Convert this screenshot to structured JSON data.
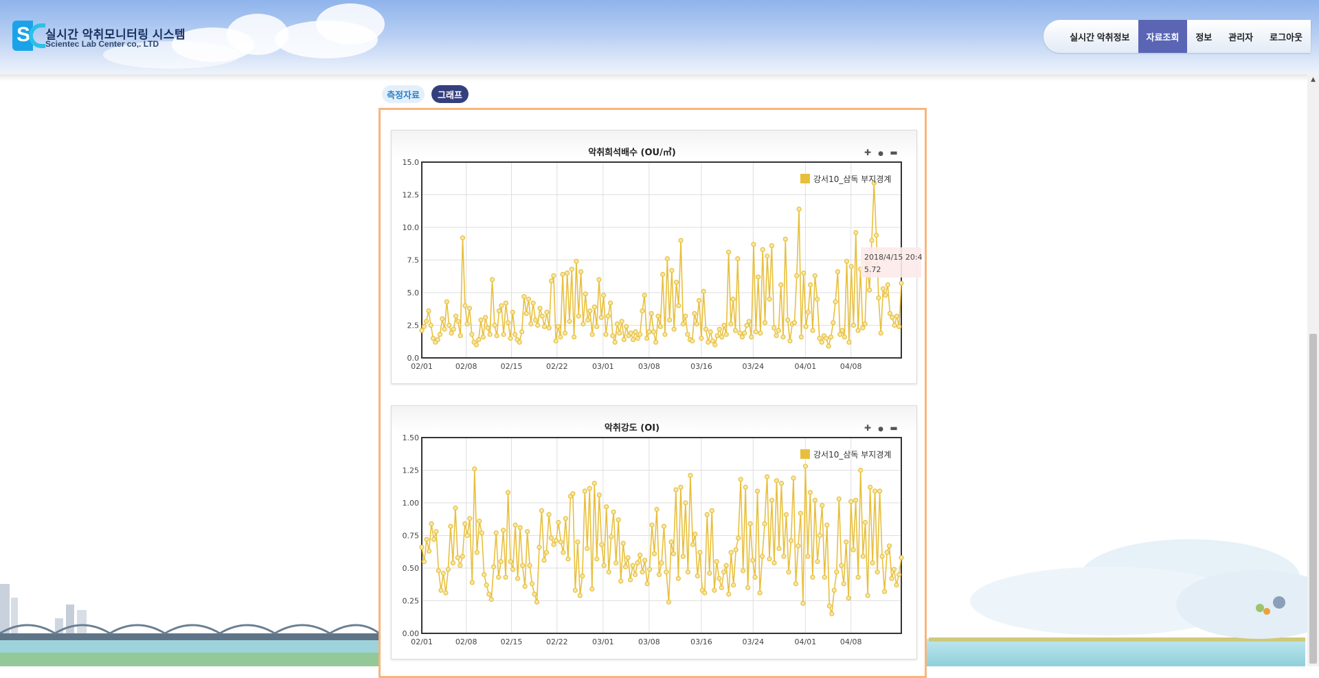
{
  "brand": {
    "title": "실시간 악취모니터링 시스템",
    "subtitle": "Scientec Lab Center co,. LTD",
    "logo_letter": "S"
  },
  "nav": {
    "items": [
      {
        "label": "실시간 악취정보",
        "active": false
      },
      {
        "label": "자료조회",
        "active": true
      },
      {
        "label": "정보",
        "active": false
      },
      {
        "label": "관리자",
        "active": false
      },
      {
        "label": "로그아웃",
        "active": false
      }
    ]
  },
  "tabs": {
    "measure_label": "측정자료",
    "graph_label": "그래프"
  },
  "icons": {
    "zoom_in": "plus-icon",
    "reset": "dot-icon",
    "zoom_out": "minus-icon"
  },
  "colors": {
    "series": "#e8bf3c",
    "active_nav": "#5a66b4",
    "active_tab": "#34407d",
    "panel_border": "#f8b57a"
  },
  "chart_data": [
    {
      "type": "line",
      "title": "악취희석배수 (OU/㎥)",
      "legend": "강서10_삼독 부지경계",
      "legend_position": "top-right",
      "grid": true,
      "ylim": [
        0,
        15
      ],
      "yticks": [
        "0.0",
        "2.5",
        "5.0",
        "7.5",
        "10.0",
        "12.5",
        "15.0"
      ],
      "xticks": [
        "02/01",
        "02/08",
        "02/15",
        "02/22",
        "03/01",
        "03/08",
        "03/16",
        "03/24",
        "04/01",
        "04/08"
      ],
      "tooltip": {
        "date": "2018/4/15 20:4",
        "value": "5.72"
      },
      "series": [
        {
          "name": "강서10_삼독 부지경계",
          "values": [
            2.1,
            2.4,
            2.8,
            3.6,
            2.5,
            1.5,
            1.2,
            1.4,
            1.8,
            3.0,
            2.2,
            4.3,
            2.5,
            1.9,
            2.2,
            3.2,
            2.8,
            1.7,
            9.2,
            4.0,
            2.6,
            3.8,
            1.8,
            1.2,
            1.0,
            1.4,
            2.9,
            1.6,
            3.1,
            2.3,
            1.8,
            6.0,
            2.5,
            1.7,
            3.6,
            4.0,
            1.8,
            4.2,
            2.7,
            1.5,
            3.5,
            1.8,
            1.4,
            1.2,
            2.0,
            4.7,
            3.4,
            4.5,
            2.6,
            4.2,
            2.9,
            2.5,
            3.8,
            3.2,
            2.4,
            3.5,
            2.3,
            5.9,
            6.3,
            1.3,
            2.4,
            1.6,
            6.4,
            1.9,
            6.5,
            2.8,
            6.8,
            1.6,
            7.4,
            3.2,
            6.6,
            2.6,
            4.9,
            2.9,
            3.6,
            1.8,
            3.9,
            2.4,
            6.0,
            3.1,
            4.8,
            1.8,
            3.2,
            4.2,
            1.7,
            1.2,
            2.6,
            1.9,
            2.8,
            1.4,
            2.4,
            1.7,
            1.9,
            1.4,
            2.0,
            1.5,
            1.8,
            3.6,
            4.8,
            1.5,
            2.0,
            3.4,
            2.0,
            1.2,
            3.2,
            2.4,
            6.4,
            1.8,
            7.6,
            2.9,
            6.7,
            2.2,
            5.8,
            4.0,
            9.0,
            2.6,
            3.2,
            1.8,
            1.4,
            1.3,
            3.4,
            2.6,
            4.4,
            1.5,
            5.1,
            2.2,
            1.2,
            2.0,
            1.3,
            1.0,
            1.7,
            2.2,
            1.6,
            2.5,
            1.8,
            8.1,
            2.6,
            4.5,
            2.1,
            7.6,
            1.9,
            1.6,
            1.9,
            2.5,
            2.8,
            1.6,
            8.7,
            2.0,
            6.2,
            1.9,
            8.3,
            2.7,
            7.8,
            4.5,
            8.6,
            2.3,
            1.7,
            2.1,
            5.6,
            1.6,
            9.1,
            2.9,
            1.3,
            2.6,
            2.7,
            6.3,
            11.4,
            1.6,
            6.5,
            2.4,
            3.5,
            5.6,
            2.1,
            6.3,
            4.5,
            1.5,
            1.2,
            1.7,
            1.5,
            0.9,
            1.6,
            2.7,
            4.3,
            6.6,
            1.8,
            2.1,
            1.6,
            7.4,
            1.2,
            7.0,
            2.5,
            9.6,
            2.1,
            6.8,
            2.3,
            2.6,
            7.3,
            5.2,
            9.0,
            13.4,
            9.4,
            4.6,
            1.9,
            5.3,
            4.8,
            5.6,
            3.4,
            3.1,
            2.5,
            3.2,
            2.4,
            5.72
          ]
        }
      ]
    },
    {
      "type": "line",
      "title": "악취강도 (OI)",
      "legend": "강서10_삼독 부지경계",
      "legend_position": "top-right",
      "grid": true,
      "ylim": [
        0,
        1.5
      ],
      "yticks": [
        "0.00",
        "0.25",
        "0.50",
        "0.75",
        "1.00",
        "1.25",
        "1.50"
      ],
      "xticks": [
        "02/01",
        "02/08",
        "02/15",
        "02/22",
        "03/01",
        "03/08",
        "03/16",
        "03/24",
        "04/01",
        "04/08"
      ],
      "series": [
        {
          "name": "강서10_삼독 부지경계",
          "values": [
            0.66,
            0.55,
            0.72,
            0.63,
            0.84,
            0.72,
            0.78,
            0.48,
            0.33,
            0.46,
            0.31,
            0.49,
            0.82,
            0.54,
            0.96,
            0.58,
            0.52,
            0.59,
            0.84,
            0.75,
            0.88,
            0.39,
            1.26,
            0.62,
            0.86,
            0.77,
            0.45,
            0.37,
            0.3,
            0.26,
            0.51,
            0.77,
            0.43,
            0.55,
            0.79,
            0.43,
            1.08,
            0.55,
            0.49,
            0.83,
            0.42,
            0.81,
            0.52,
            0.36,
            0.78,
            0.52,
            0.38,
            0.3,
            0.24,
            0.66,
            0.94,
            0.56,
            0.62,
            0.91,
            0.73,
            0.68,
            0.71,
            0.85,
            0.7,
            0.62,
            0.88,
            0.57,
            1.05,
            1.07,
            0.33,
            0.7,
            0.29,
            0.44,
            1.09,
            0.65,
            1.11,
            0.34,
            1.15,
            0.57,
            1.06,
            0.68,
            0.52,
            0.97,
            0.47,
            0.74,
            0.93,
            0.54,
            0.87,
            0.4,
            0.69,
            0.51,
            0.58,
            0.41,
            0.52,
            0.45,
            0.54,
            0.6,
            0.47,
            0.56,
            0.38,
            0.49,
            0.83,
            0.61,
            0.95,
            0.45,
            0.54,
            0.82,
            0.47,
            0.24,
            0.7,
            0.61,
            1.1,
            0.42,
            1.12,
            0.59,
            1.0,
            0.47,
            1.21,
            0.68,
            0.76,
            0.44,
            0.62,
            0.33,
            0.31,
            0.91,
            0.46,
            0.94,
            0.33,
            0.55,
            0.42,
            0.35,
            0.47,
            0.52,
            0.3,
            0.62,
            0.37,
            0.64,
            0.73,
            1.18,
            0.48,
            1.12,
            0.35,
            0.84,
            0.56,
            0.43,
            1.09,
            0.31,
            0.59,
            0.84,
            1.2,
            0.57,
            1.02,
            0.54,
            1.17,
            0.65,
            1.15,
            0.59,
            0.91,
            0.47,
            0.71,
            1.19,
            0.38,
            0.67,
            0.92,
            0.23,
            1.28,
            0.59,
            1.08,
            0.43,
            1.02,
            0.55,
            0.75,
            0.98,
            0.43,
            0.83,
            0.21,
            0.15,
            0.33,
            0.47,
            1.03,
            0.52,
            0.38,
            0.7,
            0.27,
            1.01,
            0.64,
            1.02,
            0.43,
            1.25,
            0.59,
            0.85,
            0.29,
            1.12,
            0.54,
            1.09,
            0.47,
            1.09,
            0.59,
            0.32,
            0.62,
            0.67,
            0.42,
            0.49,
            0.37,
            0.45,
            0.58
          ]
        }
      ]
    }
  ]
}
